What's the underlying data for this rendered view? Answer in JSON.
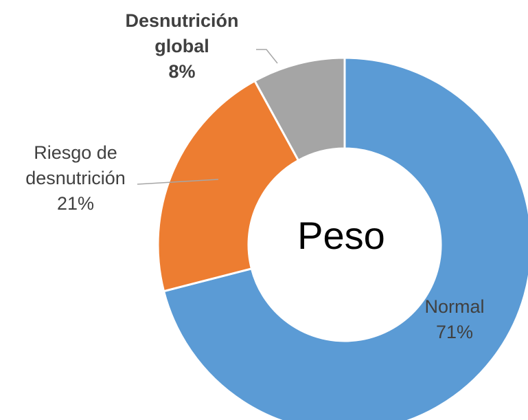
{
  "chart_data": {
    "type": "donut",
    "center_label": "Peso",
    "categories": [
      "Normal",
      "Riesgo de desnutrición",
      "Desnutrición global"
    ],
    "values": [
      71,
      21,
      8
    ],
    "value_labels": [
      "71%",
      "21%",
      "8%"
    ],
    "colors": [
      "#5b9bd5",
      "#ed7d31",
      "#a5a5a5"
    ]
  }
}
